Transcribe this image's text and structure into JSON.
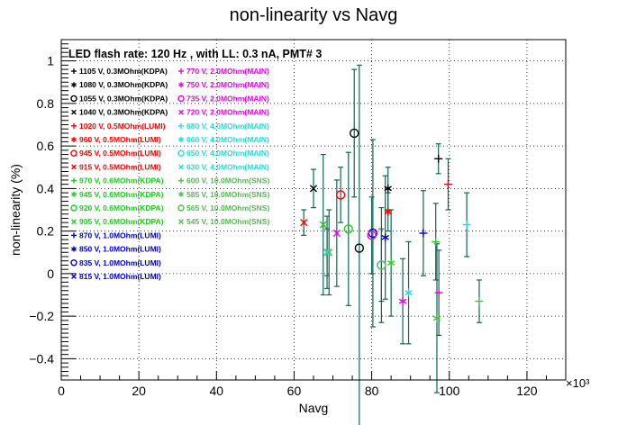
{
  "chart_data": {
    "type": "scatter",
    "title": "non-linearity vs Navg",
    "xlabel": "Navg",
    "ylabel": "non-linearity (%)",
    "x_multiplier": "×10³",
    "xlim": [
      0,
      130
    ],
    "ylim": [
      -0.5,
      1.1
    ],
    "x_ticks": [
      "0",
      "20",
      "40",
      "60",
      "80",
      "100",
      "120"
    ],
    "y_ticks": [
      "−0.4",
      "−0.2",
      "0",
      "0.2",
      "0.4",
      "0.6",
      "0.8",
      "1"
    ],
    "grid": true,
    "annotation": "LED flash rate: 120 Hz , with LL: 0.3 nA, PMT# 3",
    "legend_left": [
      {
        "marker": "+",
        "label": "1105 V, 0.3MOhm(KDPA)",
        "color": "#000000"
      },
      {
        "marker": "*",
        "label": "1080 V, 0.3MOhm(KDPA)",
        "color": "#000000"
      },
      {
        "marker": "O",
        "label": "1055 V, 0.3MOhm(KDPA)",
        "color": "#000000"
      },
      {
        "marker": "X",
        "label": "1040 V, 0.3MOhm(KDPA)",
        "color": "#000000"
      },
      {
        "marker": "+",
        "label": "1020 V, 0.5MOhm(LUMI)",
        "color": "#ff0000"
      },
      {
        "marker": "*",
        "label": "960 V, 0.5MOhm(LUMI)",
        "color": "#ff0000"
      },
      {
        "marker": "O",
        "label": "945 V, 0.5MOhm(LUMI)",
        "color": "#ff0000"
      },
      {
        "marker": "X",
        "label": "915 V, 0.5MOhm(LUMI)",
        "color": "#ff0000"
      },
      {
        "marker": "+",
        "label": "970 V, 0.6MOhm(KDPA)",
        "color": "#22cc22"
      },
      {
        "marker": "*",
        "label": "945 V, 0.6MOhm(KDPA)",
        "color": "#22cc22"
      },
      {
        "marker": "O",
        "label": "920 V, 0.6MOhm(KDPA)",
        "color": "#22cc22"
      },
      {
        "marker": "X",
        "label": "905 V, 0.6MOhm(KDPA)",
        "color": "#22cc22"
      },
      {
        "marker": "+",
        "label": "870 V, 1.0MOhm(LUMI)",
        "color": "#0000cc"
      },
      {
        "marker": "*",
        "label": "850 V, 1.0MOhm(LUMI)",
        "color": "#0000cc"
      },
      {
        "marker": "O",
        "label": "835 V, 1.0MOhm(LUMI)",
        "color": "#0000cc"
      },
      {
        "marker": "X",
        "label": "815 V, 1.0MOhm(LUMI)",
        "color": "#0000cc"
      }
    ],
    "legend_right": [
      {
        "marker": "+",
        "label": "770 V, 2.0MOhm(MAIN)",
        "color": "#ee00ee"
      },
      {
        "marker": "*",
        "label": "750 V, 2.0MOhm(MAIN)",
        "color": "#ee00ee"
      },
      {
        "marker": "O",
        "label": "735 V, 2.0MOhm(MAIN)",
        "color": "#ee00ee"
      },
      {
        "marker": "X",
        "label": "720 V, 2.0MOhm(MAIN)",
        "color": "#ee00ee"
      },
      {
        "marker": "+",
        "label": "680 V, 4.0MOhm(MAIN)",
        "color": "#22dddd"
      },
      {
        "marker": "*",
        "label": "660 V, 4.0MOhm(MAIN)",
        "color": "#22dddd"
      },
      {
        "marker": "O",
        "label": "650 V, 4.0MOhm(MAIN)",
        "color": "#22dddd"
      },
      {
        "marker": "X",
        "label": "630 V, 4.0MOhm(MAIN)",
        "color": "#22dddd"
      },
      {
        "marker": "+",
        "label": "600 V, 10.0MOhm(SNS)",
        "color": "#55bb55"
      },
      {
        "marker": "*",
        "label": "585 V, 10.0MOhm(SNS)",
        "color": "#55bb55"
      },
      {
        "marker": "O",
        "label": "565 V, 10.0MOhm(SNS)",
        "color": "#55bb55"
      },
      {
        "marker": "X",
        "label": "545 V, 10.0MOhm(SNS)",
        "color": "#55bb55"
      }
    ],
    "points": [
      {
        "x": 97.2,
        "y": 0.54,
        "yerr": 0.07,
        "marker": "+",
        "color": "#000000"
      },
      {
        "x": 84.2,
        "y": 0.4,
        "yerr": 0.1,
        "marker": "*",
        "color": "#000000"
      },
      {
        "x": 76.8,
        "y": 0.12,
        "yerr": 0.86,
        "marker": "O",
        "color": "#000000"
      },
      {
        "x": 75.5,
        "y": 0.66,
        "yerr": 0.3,
        "marker": "O",
        "color": "#000000"
      },
      {
        "x": 65.0,
        "y": 0.4,
        "yerr": 0.09,
        "marker": "X",
        "color": "#000000"
      },
      {
        "x": 99.7,
        "y": 0.42,
        "yerr": 0.12,
        "marker": "+",
        "color": "#ff0000"
      },
      {
        "x": 84.2,
        "y": 0.29,
        "yerr": 0.09,
        "marker": "*",
        "color": "#ff0000"
      },
      {
        "x": 72.0,
        "y": 0.37,
        "yerr": 0.13,
        "marker": "O",
        "color": "#ff0000"
      },
      {
        "x": 62.5,
        "y": 0.24,
        "yerr": 0.06,
        "marker": "X",
        "color": "#ff0000"
      },
      {
        "x": 96.5,
        "y": 0.15,
        "yerr": 0.18,
        "marker": "+",
        "color": "#22cc22"
      },
      {
        "x": 85.0,
        "y": 0.05,
        "yerr": 0.25,
        "marker": "*",
        "color": "#22cc22"
      },
      {
        "x": 74.0,
        "y": 0.21,
        "yerr": 0.36,
        "marker": "O",
        "color": "#22cc22"
      },
      {
        "x": 67.5,
        "y": 0.23,
        "yerr": 0.33,
        "marker": "X",
        "color": "#22cc22"
      },
      {
        "x": 93.3,
        "y": 0.19,
        "yerr": 0.2,
        "marker": "+",
        "color": "#0000cc"
      },
      {
        "x": 83.5,
        "y": 0.17,
        "yerr": 0.29,
        "marker": "*",
        "color": "#0000cc"
      },
      {
        "x": 80.3,
        "y": 0.19,
        "yerr": 0.44,
        "marker": "O",
        "color": "#0000cc"
      },
      {
        "x": 68.5,
        "y": 0.1,
        "yerr": 0.11,
        "marker": "X",
        "color": "#0000cc"
      },
      {
        "x": 97.3,
        "y": -0.09,
        "yerr": 0.2,
        "marker": "+",
        "color": "#ee00ee"
      },
      {
        "x": 88.0,
        "y": -0.13,
        "yerr": 0.2,
        "marker": "*",
        "color": "#ee00ee"
      },
      {
        "x": 80.0,
        "y": 0.18,
        "yerr": 0.18,
        "marker": "O",
        "color": "#ee00ee"
      },
      {
        "x": 71.0,
        "y": 0.19,
        "yerr": 0.25,
        "marker": "X",
        "color": "#ee00ee"
      },
      {
        "x": 104.5,
        "y": 0.23,
        "yerr": 0.15,
        "marker": "+",
        "color": "#22dddd"
      },
      {
        "x": 89.5,
        "y": -0.09,
        "yerr": 0.24,
        "marker": "*",
        "color": "#22dddd"
      },
      {
        "x": 82.5,
        "y": 0.04,
        "yerr": 0.17,
        "marker": "O",
        "color": "#22dddd"
      },
      {
        "x": 68.5,
        "y": 0.1,
        "yerr": 0.17,
        "marker": "X",
        "color": "#22dddd"
      },
      {
        "x": 107.7,
        "y": -0.13,
        "yerr": 0.1,
        "marker": "+",
        "color": "#55bb55"
      },
      {
        "x": 96.8,
        "y": -0.21,
        "yerr": 0.35,
        "marker": "*",
        "color": "#55bb55"
      },
      {
        "x": 82.5,
        "y": 0.04,
        "yerr": 0.27,
        "marker": "O",
        "color": "#55bb55"
      },
      {
        "x": 69.0,
        "y": 0.1,
        "yerr": 0.2,
        "marker": "X",
        "color": "#55bb55"
      }
    ],
    "error_bar_color": "#116655"
  }
}
